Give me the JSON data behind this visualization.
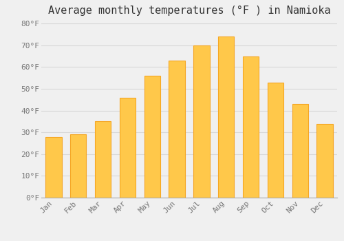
{
  "title": "Average monthly temperatures (°F ) in Namioka",
  "months": [
    "Jan",
    "Feb",
    "Mar",
    "Apr",
    "May",
    "Jun",
    "Jul",
    "Aug",
    "Sep",
    "Oct",
    "Nov",
    "Dec"
  ],
  "values": [
    28,
    29,
    35,
    46,
    56,
    63,
    70,
    74,
    65,
    53,
    43,
    34
  ],
  "bar_color_top": "#FFC84A",
  "bar_color_bottom": "#F5A623",
  "background_color": "#f0f0f0",
  "grid_color": "#d8d8d8",
  "ylim": [
    0,
    82
  ],
  "yticks": [
    0,
    10,
    20,
    30,
    40,
    50,
    60,
    70,
    80
  ],
  "title_fontsize": 11,
  "tick_fontsize": 8,
  "tick_label_color": "#777777",
  "title_color": "#333333"
}
